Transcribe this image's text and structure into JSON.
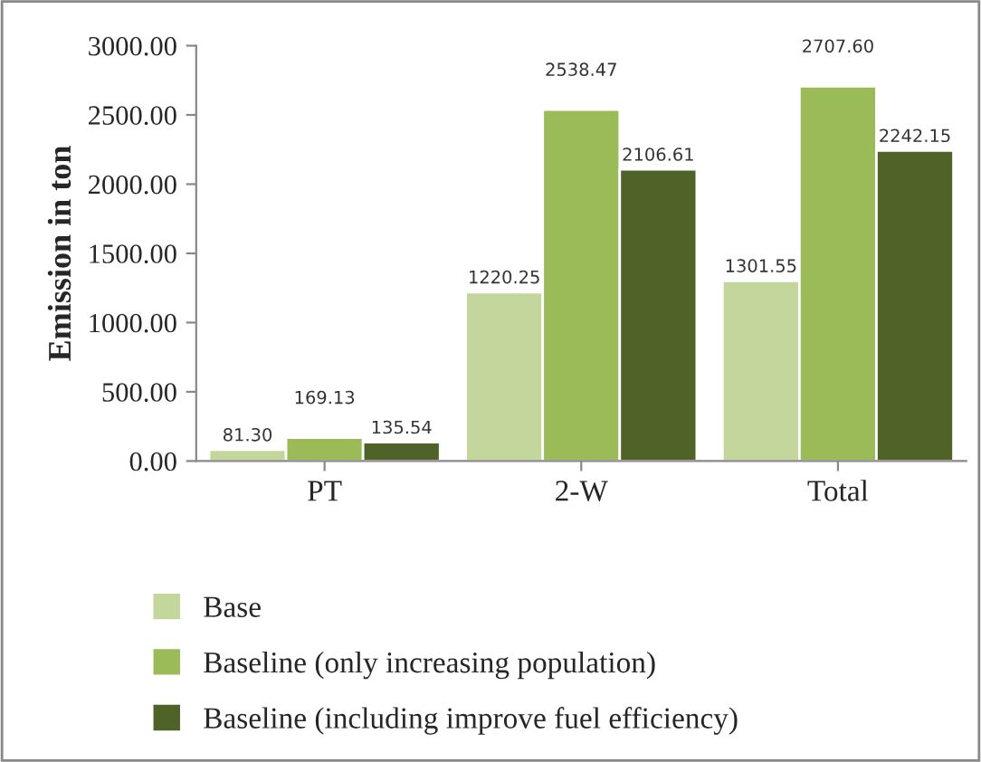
{
  "chart_data": {
    "type": "bar",
    "ylabel": "Emission in ton",
    "categories": [
      "PT",
      "2-W",
      "Total"
    ],
    "series": [
      {
        "name": "Base",
        "color": "#c3d69b",
        "values": [
          81.3,
          1220.25,
          1301.55
        ],
        "value_labels": [
          "81.30",
          "1220.25",
          "1301.55"
        ]
      },
      {
        "name": "Baseline (only increasing population)",
        "color": "#9bbb59",
        "values": [
          169.13,
          2538.47,
          2707.6
        ],
        "value_labels": [
          "169.13",
          "2538.47",
          "2707.60"
        ]
      },
      {
        "name": "Baseline (including improve fuel efficiency)",
        "color": "#4f6228",
        "values": [
          135.54,
          2106.61,
          2242.15
        ],
        "value_labels": [
          "135.54",
          "2106.61",
          "2242.15"
        ]
      }
    ],
    "ylim": [
      0,
      3000
    ],
    "yticks": [
      {
        "value": 0,
        "label": "0.00"
      },
      {
        "value": 500,
        "label": "500.00"
      },
      {
        "value": 1000,
        "label": "1000.00"
      },
      {
        "value": 1500,
        "label": "1500.00"
      },
      {
        "value": 2000,
        "label": "2000.00"
      },
      {
        "value": 2500,
        "label": "2500.00"
      },
      {
        "value": 3000,
        "label": "3000.00"
      }
    ],
    "grid": false,
    "legend": "bottom"
  }
}
